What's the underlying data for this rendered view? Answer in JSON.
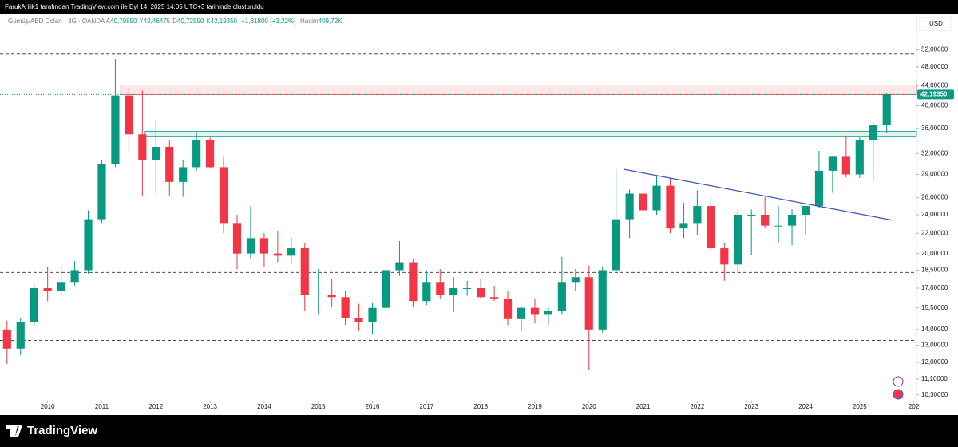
{
  "header": {
    "attribution": "FarukArilik1 tarafından TradingView.com ile Eyl 14, 2025 14:05 UTC+3 tarihinde oluşturuldu"
  },
  "chart_data": {
    "type": "candlestick",
    "symbol": "Gümüş/ABD Doları · 3G · OANDA",
    "ohlc_legend": [
      {
        "key": "A",
        "value": "40,79850"
      },
      {
        "key": "Y",
        "value": "42,46475"
      },
      {
        "key": "D",
        "value": "40,72550"
      },
      {
        "key": "K",
        "value": "42,19350"
      }
    ],
    "change": "+1,31800 (+3,22%)",
    "volume_label": "Hacim",
    "volume": "409,72K",
    "currency": "USD",
    "x": [
      2009.25,
      2009.5,
      2009.75,
      2010,
      2010.25,
      2010.5,
      2010.75,
      2011,
      2011.25,
      2011.5,
      2011.75,
      2012,
      2012.25,
      2012.5,
      2012.75,
      2013,
      2013.25,
      2013.5,
      2013.75,
      2014,
      2014.25,
      2014.5,
      2014.75,
      2015,
      2015.25,
      2015.5,
      2015.75,
      2016,
      2016.25,
      2016.5,
      2016.75,
      2017,
      2017.25,
      2017.5,
      2017.75,
      2018,
      2018.25,
      2018.5,
      2018.75,
      2019,
      2019.25,
      2019.5,
      2019.75,
      2020,
      2020.25,
      2020.5,
      2020.75,
      2021,
      2021.25,
      2021.5,
      2021.75,
      2022,
      2022.25,
      2022.5,
      2022.75,
      2023,
      2023.25,
      2023.5,
      2023.75,
      2024,
      2024.25,
      2024.5,
      2024.75,
      2025,
      2025.25,
      2025.5
    ],
    "open": [
      14.0,
      12.8,
      14.5,
      17.0,
      16.8,
      17.5,
      18.5,
      23.5,
      30.5,
      42.0,
      35.0,
      31.0,
      33.0,
      28.0,
      30.0,
      34.0,
      30.0,
      23.0,
      20.0,
      21.5,
      20.0,
      19.8,
      20.5,
      16.5,
      16.5,
      16.3,
      14.8,
      14.5,
      15.5,
      18.5,
      19.2,
      16.0,
      17.5,
      16.5,
      17.0,
      17.0,
      16.3,
      16.2,
      14.7,
      15.5,
      15.0,
      15.3,
      17.5,
      17.9,
      14.0,
      18.5,
      23.5,
      26.5,
      24.5,
      27.5,
      22.5,
      23.0,
      25.0,
      20.5,
      19.0,
      24.0,
      24.0,
      22.8,
      22.8,
      24.0,
      25.0,
      29.5,
      31.5,
      29.0,
      34.0,
      36.5
    ],
    "high": [
      14.6,
      14.8,
      17.4,
      18.8,
      19.0,
      19.3,
      24.5,
      31.0,
      49.8,
      43.5,
      43.0,
      37.5,
      34.0,
      31.0,
      35.4,
      34.5,
      31.5,
      24.0,
      25.0,
      22.0,
      22.2,
      21.6,
      21.0,
      18.6,
      17.8,
      16.8,
      15.8,
      15.9,
      18.8,
      21.2,
      19.5,
      18.5,
      18.6,
      17.9,
      17.6,
      17.8,
      17.2,
      16.8,
      15.6,
      16.2,
      15.6,
      19.7,
      18.6,
      18.9,
      18.8,
      29.8,
      27.0,
      30.0,
      28.8,
      28.5,
      25.4,
      26.9,
      26.2,
      21.0,
      24.5,
      24.6,
      26.1,
      25.0,
      24.6,
      24.9,
      32.4,
      31.6,
      34.8,
      34.5,
      37.0,
      42.5
    ],
    "low": [
      11.9,
      12.4,
      14.2,
      16.0,
      16.5,
      17.2,
      18.2,
      23.0,
      30.0,
      32.0,
      26.2,
      26.5,
      26.2,
      26.1,
      29.5,
      29.8,
      22.0,
      18.6,
      19.5,
      18.8,
      19.2,
      19.0,
      15.3,
      15.0,
      15.6,
      14.3,
      13.9,
      13.7,
      15.0,
      18.0,
      15.6,
      15.7,
      16.2,
      15.2,
      16.4,
      16.2,
      16.0,
      14.3,
      13.9,
      14.4,
      14.3,
      15.0,
      16.8,
      11.6,
      13.8,
      18.2,
      21.5,
      24.2,
      24.0,
      22.0,
      21.5,
      21.8,
      20.2,
      17.6,
      18.2,
      19.9,
      22.5,
      21.0,
      20.8,
      21.9,
      24.8,
      26.6,
      28.6,
      28.5,
      28.3,
      35.2
    ],
    "close": [
      12.8,
      14.5,
      17.0,
      16.8,
      17.5,
      18.5,
      23.5,
      30.5,
      42.0,
      35.0,
      31.0,
      33.0,
      28.0,
      30.0,
      34.0,
      30.0,
      23.0,
      20.0,
      21.5,
      20.0,
      19.8,
      20.5,
      16.5,
      16.5,
      16.3,
      14.8,
      14.5,
      15.5,
      18.5,
      19.2,
      16.0,
      17.5,
      16.5,
      17.0,
      17.0,
      16.3,
      16.2,
      14.7,
      15.5,
      15.0,
      15.3,
      17.5,
      17.9,
      14.0,
      18.5,
      23.5,
      26.5,
      24.5,
      27.5,
      22.5,
      23.0,
      25.0,
      20.5,
      19.0,
      24.0,
      24.0,
      22.8,
      22.8,
      24.0,
      25.0,
      29.5,
      31.5,
      29.0,
      34.0,
      36.5,
      42.19
    ],
    "up_color": "#089981",
    "down_color": "#f23645",
    "xlim": [
      2009.12,
      2026.05
    ],
    "xticks": [
      2010,
      2011,
      2012,
      2013,
      2014,
      2015,
      2016,
      2017,
      2018,
      2019,
      2020,
      2021,
      2022,
      2023,
      2024,
      2025,
      {
        "value": 2026,
        "label": "202"
      }
    ],
    "ylim": [
      10.1,
      61
    ],
    "log_scale": true,
    "yticks": [
      {
        "value": 52,
        "label": "52,00000"
      },
      {
        "value": 48,
        "label": "48,00000"
      },
      {
        "value": 44,
        "label": "44,00000"
      },
      {
        "value": 40,
        "label": "40,00000"
      },
      {
        "value": 36,
        "label": "36,00000"
      },
      {
        "value": 32,
        "label": "32,00000"
      },
      {
        "value": 29,
        "label": "29,00000"
      },
      {
        "value": 26,
        "label": "26,00000"
      },
      {
        "value": 24,
        "label": "24,00000"
      },
      {
        "value": 22,
        "label": "22,00000"
      },
      {
        "value": 20,
        "label": "20,00000"
      },
      {
        "value": 18.5,
        "label": "18,50000"
      },
      {
        "value": 17,
        "label": "17,00000"
      },
      {
        "value": 15.5,
        "label": "15,50000"
      },
      {
        "value": 14,
        "label": "14,00000"
      },
      {
        "value": 13,
        "label": "13,00000"
      },
      {
        "value": 12,
        "label": "12,00000"
      },
      {
        "value": 11.1,
        "label": "11,10000"
      },
      {
        "value": 10.3,
        "label": "10,30000"
      }
    ],
    "last_price": {
      "value": 42.1935,
      "label": "42,19350"
    },
    "horizontal_lines": [
      51,
      27.2,
      18.3,
      13.3
    ],
    "zones": [
      {
        "x": 2011.35,
        "y": [
          42.2,
          44.1
        ],
        "color": "#f23645"
      },
      {
        "x": 2011.8,
        "y": [
          34.6,
          35.5
        ],
        "color": "#089981"
      }
    ],
    "trendline": {
      "x": [
        2020.65,
        2025.6
      ],
      "y": [
        29.7,
        23.4
      ],
      "color": "#3f51b5"
    }
  },
  "footer": {
    "brand": "TradingView"
  }
}
